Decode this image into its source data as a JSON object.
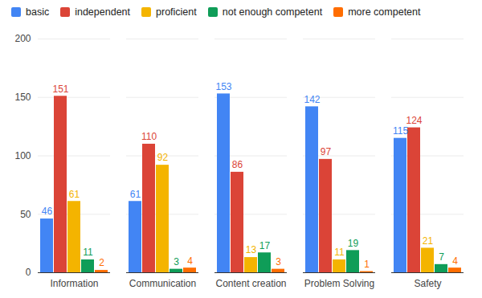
{
  "chart_data": {
    "type": "bar",
    "categories": [
      "Information",
      "Communication",
      "Content creation",
      "Problem Solving",
      "Safety"
    ],
    "series": [
      {
        "name": "basic",
        "color": "#4285f4",
        "values": [
          46,
          61,
          153,
          142,
          115
        ]
      },
      {
        "name": "independent",
        "color": "#db4437",
        "values": [
          151,
          110,
          86,
          97,
          124
        ]
      },
      {
        "name": "proficient",
        "color": "#f4b400",
        "values": [
          61,
          92,
          13,
          11,
          21
        ]
      },
      {
        "name": "not enough competent",
        "color": "#0f9d58",
        "values": [
          11,
          3,
          17,
          19,
          7
        ]
      },
      {
        "name": "more competent",
        "color": "#ff6d01",
        "values": [
          2,
          4,
          3,
          1,
          4
        ]
      }
    ],
    "ylim": [
      0,
      200
    ],
    "yticks": [
      0,
      50,
      100,
      150,
      200
    ],
    "grid": true,
    "legend": "top",
    "data_labels": true
  }
}
